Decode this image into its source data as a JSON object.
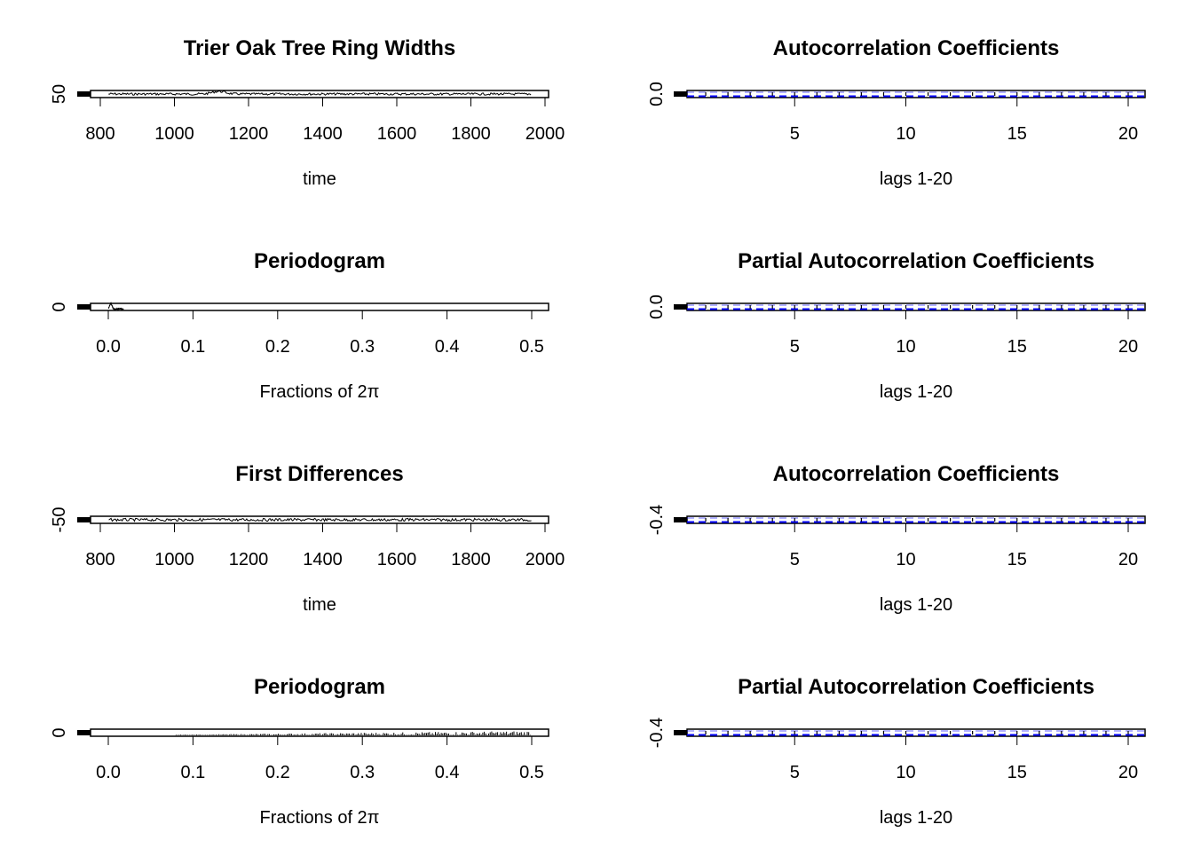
{
  "figure": {
    "panel_count": 8
  },
  "chart_data": [
    {
      "type": "line",
      "title": "Trier Oak Tree Ring Widths",
      "xlabel": "time",
      "ylabel": "",
      "x_ticks": [
        "800",
        "1000",
        "1200",
        "1400",
        "1600",
        "1800",
        "2000"
      ],
      "y_ticks": [
        "50"
      ],
      "xlim": [
        760,
        2010
      ],
      "x_range_series": [
        822,
        1964
      ],
      "series_style": "dense time series of ring widths, values mostly near 50 with a local peak near 1120",
      "approximate_points": [
        {
          "x": 822,
          "y": 55
        },
        {
          "x": 900,
          "y": 50
        },
        {
          "x": 1000,
          "y": 47
        },
        {
          "x": 1120,
          "y": 62
        },
        {
          "x": 1200,
          "y": 50
        },
        {
          "x": 1400,
          "y": 52
        },
        {
          "x": 1600,
          "y": 48
        },
        {
          "x": 1800,
          "y": 50
        },
        {
          "x": 1964,
          "y": 47
        }
      ]
    },
    {
      "type": "bar",
      "title": "Autocorrelation Coefficients",
      "xlabel": "lags 1-20",
      "ylabel": "",
      "x_ticks": [
        "5",
        "10",
        "15",
        "20"
      ],
      "y_ticks": [
        "0.0"
      ],
      "lags": [
        1,
        2,
        3,
        4,
        5,
        6,
        7,
        8,
        9,
        10,
        11,
        12,
        13,
        14,
        15,
        16,
        17,
        18,
        19,
        20
      ],
      "confidence_band_color": "#0000ff"
    },
    {
      "type": "line",
      "title": "Periodogram",
      "xlabel": "Fractions of 2π",
      "ylabel": "",
      "x_ticks": [
        "0.0",
        "0.1",
        "0.2",
        "0.3",
        "0.4",
        "0.5"
      ],
      "y_ticks": [
        "0"
      ],
      "xlim": [
        -0.02,
        0.52
      ],
      "note_shape": "large spike near frequency 0.003, near zero elsewhere",
      "approximate_points": [
        {
          "x": 0.0,
          "y": 0.2
        },
        {
          "x": 0.003,
          "y": 1.0
        },
        {
          "x": 0.008,
          "y": 0.3
        },
        {
          "x": 0.015,
          "y": 0.1
        },
        {
          "x": 0.5,
          "y": 0.0
        }
      ]
    },
    {
      "type": "bar",
      "title": "Partial Autocorrelation Coefficients",
      "xlabel": "lags 1-20",
      "ylabel": "",
      "x_ticks": [
        "5",
        "10",
        "15",
        "20"
      ],
      "y_ticks": [
        "0.0"
      ],
      "lags": [
        1,
        2,
        3,
        4,
        5,
        6,
        7,
        8,
        9,
        10,
        11,
        12,
        13,
        14,
        15,
        16,
        17,
        18,
        19,
        20
      ],
      "confidence_band_color": "#0000ff"
    },
    {
      "type": "line",
      "title": "First Differences",
      "xlabel": "time",
      "ylabel": "",
      "x_ticks": [
        "800",
        "1000",
        "1200",
        "1400",
        "1600",
        "1800",
        "2000"
      ],
      "y_ticks": [
        "-50"
      ],
      "xlim": [
        760,
        2010
      ],
      "x_range_series": [
        823,
        1964
      ],
      "series_style": "dense differenced series oscillating around 0"
    },
    {
      "type": "bar",
      "title": "Autocorrelation Coefficients",
      "xlabel": "lags 1-20",
      "ylabel": "",
      "x_ticks": [
        "5",
        "10",
        "15",
        "20"
      ],
      "y_ticks": [
        "-0.4"
      ],
      "lags": [
        1,
        2,
        3,
        4,
        5,
        6,
        7,
        8,
        9,
        10,
        11,
        12,
        13,
        14,
        15,
        16,
        17,
        18,
        19,
        20
      ],
      "confidence_band_color": "#0000ff"
    },
    {
      "type": "line",
      "title": "Periodogram",
      "xlabel": "Fractions of 2π",
      "ylabel": "",
      "x_ticks": [
        "0.0",
        "0.1",
        "0.2",
        "0.3",
        "0.4",
        "0.5"
      ],
      "y_ticks": [
        "0"
      ],
      "xlim": [
        -0.02,
        0.52
      ],
      "note_shape": "low at low frequencies, rising toward 0.5"
    },
    {
      "type": "bar",
      "title": "Partial Autocorrelation Coefficients",
      "xlabel": "lags 1-20",
      "ylabel": "",
      "x_ticks": [
        "5",
        "10",
        "15",
        "20"
      ],
      "y_ticks": [
        "-0.4"
      ],
      "lags": [
        1,
        2,
        3,
        4,
        5,
        6,
        7,
        8,
        9,
        10,
        11,
        12,
        13,
        14,
        15,
        16,
        17,
        18,
        19,
        20
      ],
      "confidence_band_color": "#0000ff"
    }
  ]
}
